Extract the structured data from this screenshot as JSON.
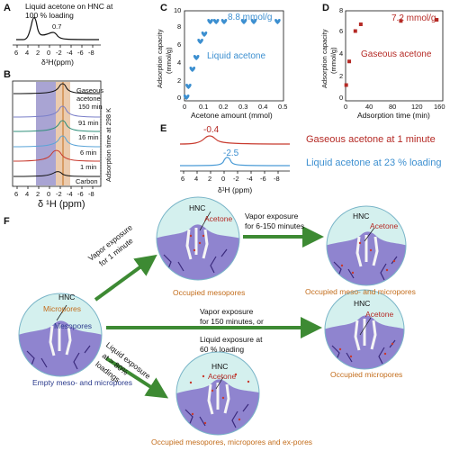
{
  "panelA": {
    "label": "A",
    "title_line1": "Liquid acetone on HNC at",
    "title_line2": "100 % loading",
    "peak_label": "0.7",
    "xticks": [
      "6",
      "4",
      "2",
      "0",
      "-2",
      "-4",
      "-6",
      "-8"
    ],
    "xlabel": "δ¹H(ppm)"
  },
  "panelB": {
    "label": "B",
    "band_label": "A",
    "series": [
      "150 min",
      "91 min",
      "16 min",
      "6 min",
      "1 min",
      "Carbon"
    ],
    "gaseous_line1": "Gaseous",
    "gaseous_line2": "acetone",
    "side_label": "Adsorption time at 298 K",
    "xticks": [
      "6",
      "4",
      "2",
      "0",
      "-2",
      "-4",
      "-6",
      "-8"
    ],
    "xlabel": "δ ¹H (ppm)"
  },
  "panelC": {
    "label": "C",
    "ylabel_line1": "Adsorption capacity",
    "ylabel_line2": "(mmol/g)",
    "xlabel": "Acetone amount (mmol)",
    "yticks": [
      "0",
      "2",
      "4",
      "6",
      "8",
      "10"
    ],
    "xticks": [
      "0",
      "0.1",
      "0.2",
      "0.3",
      "0.4",
      "0.5"
    ],
    "annotation": "8.8 mmol/g",
    "series_label": "Liquid acetone",
    "color": "#3c8fd0"
  },
  "panelD": {
    "label": "D",
    "ylabel_line1": "Adsorption capacity",
    "ylabel_line2": "(mmol/g)",
    "xlabel": "Adsorption time (min)",
    "yticks": [
      "0",
      "2",
      "4",
      "6",
      "8"
    ],
    "xticks": [
      "0",
      "40",
      "80",
      "120",
      "160"
    ],
    "annotation": "7.2 mmol/g",
    "series_label": "Gaseous acetone",
    "color": "#b52a25"
  },
  "panelE": {
    "label": "E",
    "peak_red": "-0.4",
    "peak_blue": "-2.5",
    "legend_red": "Gaseous acetone at 1 minute",
    "legend_blue": "Liquid acetone at 23 % loading",
    "xticks": [
      "6",
      "4",
      "2",
      "0",
      "-2",
      "-4",
      "-6",
      "-8"
    ],
    "xlabel": "δ¹H (ppm)"
  },
  "chart_data": [
    {
      "type": "scatter",
      "panel": "C",
      "xlabel": "Acetone amount (mmol)",
      "ylabel": "Adsorption capacity (mmol/g)",
      "xlim": [
        0,
        0.5
      ],
      "ylim": [
        0,
        10
      ],
      "series": [
        {
          "name": "Liquid acetone",
          "x": [
            0.01,
            0.02,
            0.04,
            0.06,
            0.08,
            0.1,
            0.13,
            0.16,
            0.2,
            0.3,
            0.35,
            0.47
          ],
          "y": [
            0.4,
            1.6,
            3.5,
            4.8,
            6.6,
            7.4,
            8.8,
            8.8,
            8.8,
            8.8,
            8.8,
            8.8
          ]
        }
      ]
    },
    {
      "type": "scatter",
      "panel": "D",
      "xlabel": "Adsorption time (min)",
      "ylabel": "Adsorption capacity (mmol/g)",
      "xlim": [
        0,
        160
      ],
      "ylim": [
        0,
        8
      ],
      "series": [
        {
          "name": "Gaseous acetone",
          "x": [
            1,
            6,
            16,
            25,
            91,
            150
          ],
          "y": [
            1.4,
            3.5,
            6.2,
            6.8,
            7.1,
            7.2
          ]
        }
      ]
    }
  ],
  "panelF": {
    "label": "F",
    "hnc": "HNC",
    "micropores": "Micropores",
    "mesopores": "Mesopores",
    "acetone": "Acetone",
    "empty_caption": "Empty meso- and micropores",
    "occ_meso_caption": "Occupied mesopores",
    "occ_meso_micro_caption": "Occupied meso- and micropores",
    "occ_micro_caption": "Occupied micropores",
    "occ_all_caption": "Occupied mesopores, micropores and ex-pores",
    "arrow1_line1": "Vapor exposure",
    "arrow1_line2": "for 1 minute",
    "arrow2_line1": "Vapor exposure",
    "arrow2_line2": "for 6-150 minutes",
    "arrow3_line1": "Vapor exposure",
    "arrow3_line2": "for 150 minutes, or",
    "arrow3_line3": "Liquid exposure at",
    "arrow3_line4": "60 % loading",
    "arrow4_line1": "Liquid exposure",
    "arrow4_line2": "at > 80%",
    "arrow4_line3": "loadings"
  }
}
